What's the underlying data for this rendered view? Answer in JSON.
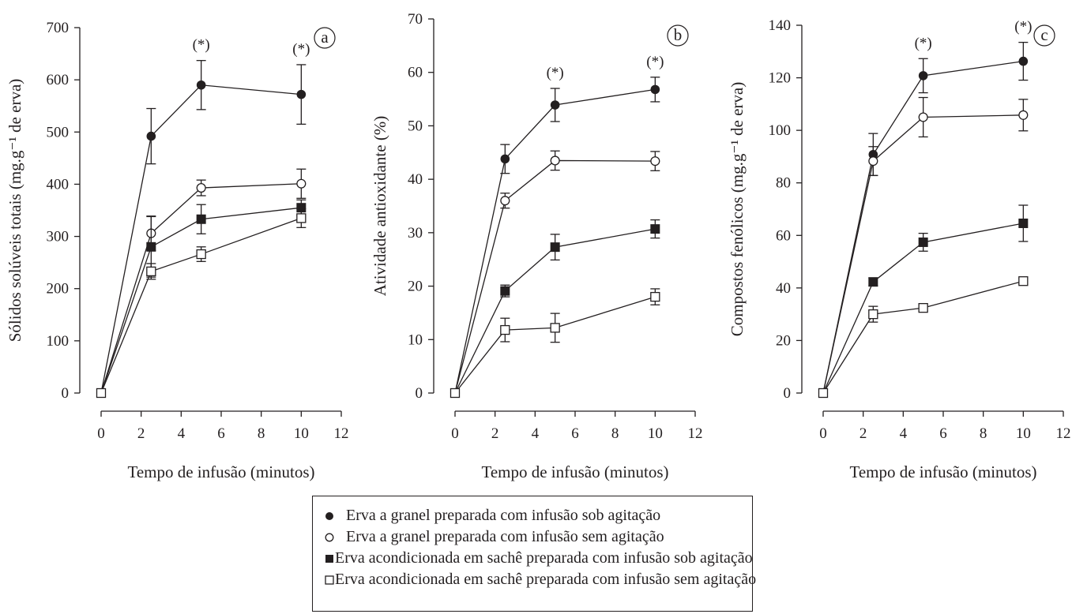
{
  "figure": {
    "legend": [
      {
        "marker": "filled-circle",
        "label": "Erva a granel preparada com infusão sob agitação"
      },
      {
        "marker": "open-circle",
        "label": "Erva a granel preparada com infusão sem agitação"
      },
      {
        "marker": "filled-square",
        "label": "Erva acondicionada em sachê preparada com infusão sob agitação"
      },
      {
        "marker": "open-square",
        "label": "Erva acondicionada em sachê preparada com infusão sem agitação"
      }
    ],
    "colors": {
      "ink": "#231f20",
      "background": "#ffffff"
    }
  },
  "chart_data": [
    {
      "type": "line",
      "panel": "a",
      "xlabel": "Tempo de infusão (minutos)",
      "ylabel": "Sólidos solúveis totais (mg.g⁻¹ de erva)",
      "xlim": [
        0,
        12
      ],
      "ylim": [
        0,
        700
      ],
      "xticks": [
        0,
        2,
        4,
        6,
        8,
        10,
        12
      ],
      "yticks": [
        0,
        100,
        200,
        300,
        400,
        500,
        600,
        700
      ],
      "x": [
        0,
        2.5,
        5,
        10
      ],
      "grid": false,
      "annotations": [
        {
          "x": 5,
          "text": "(*)"
        },
        {
          "x": 10,
          "text": "(*)"
        }
      ],
      "series": [
        {
          "marker": "filled-circle",
          "values": [
            0,
            492,
            590,
            572
          ],
          "errors": [
            0,
            53,
            47,
            57
          ]
        },
        {
          "marker": "open-circle",
          "values": [
            0,
            306,
            393,
            401
          ],
          "errors": [
            0,
            33,
            15,
            28
          ]
        },
        {
          "marker": "filled-square",
          "values": [
            0,
            280,
            333,
            355
          ],
          "errors": [
            0,
            58,
            28,
            15
          ]
        },
        {
          "marker": "open-square",
          "values": [
            0,
            233,
            266,
            335
          ],
          "errors": [
            0,
            15,
            14,
            18
          ]
        }
      ]
    },
    {
      "type": "line",
      "panel": "b",
      "xlabel": "Tempo de infusão (minutos)",
      "ylabel": "Atividade antioxidante (%)",
      "xlim": [
        0,
        12
      ],
      "ylim": [
        0,
        70
      ],
      "xticks": [
        0,
        2,
        4,
        6,
        8,
        10,
        12
      ],
      "yticks": [
        0,
        10,
        20,
        30,
        40,
        50,
        60,
        70
      ],
      "x": [
        0,
        2.5,
        5,
        10
      ],
      "grid": false,
      "annotations": [
        {
          "x": 5,
          "text": "(*)"
        },
        {
          "x": 10,
          "text": "(*)"
        }
      ],
      "series": [
        {
          "marker": "filled-circle",
          "values": [
            0,
            43.8,
            53.9,
            56.8
          ],
          "errors": [
            0,
            2.7,
            3.1,
            2.3
          ]
        },
        {
          "marker": "open-circle",
          "values": [
            0,
            36.0,
            43.5,
            43.4
          ],
          "errors": [
            0,
            1.4,
            1.8,
            1.8
          ]
        },
        {
          "marker": "filled-square",
          "values": [
            0,
            19.1,
            27.3,
            30.7
          ],
          "errors": [
            0,
            1.1,
            2.4,
            1.7
          ]
        },
        {
          "marker": "open-square",
          "values": [
            0,
            11.8,
            12.2,
            18.0
          ],
          "errors": [
            0,
            2.2,
            2.7,
            1.5
          ]
        }
      ]
    },
    {
      "type": "line",
      "panel": "c",
      "xlabel": "Tempo de infusão (minutos)",
      "ylabel": "Compostos fenólicos (mg.g⁻¹ de erva)",
      "xlim": [
        0,
        12
      ],
      "ylim": [
        0,
        140
      ],
      "xticks": [
        0,
        2,
        4,
        6,
        8,
        10,
        12
      ],
      "yticks": [
        0,
        20,
        40,
        60,
        80,
        100,
        120,
        140
      ],
      "x": [
        0,
        2.5,
        5,
        10
      ],
      "grid": false,
      "annotations": [
        {
          "x": 5,
          "text": "(*)"
        },
        {
          "x": 10,
          "text": "(*)"
        }
      ],
      "series": [
        {
          "marker": "filled-circle",
          "values": [
            0,
            90.8,
            120.8,
            126.3
          ],
          "errors": [
            0,
            8.0,
            6.5,
            7.2
          ]
        },
        {
          "marker": "open-circle",
          "values": [
            0,
            88.3,
            105.0,
            105.8
          ],
          "errors": [
            0,
            5.5,
            7.5,
            6.0
          ]
        },
        {
          "marker": "filled-square",
          "values": [
            0,
            42.3,
            57.4,
            64.6
          ],
          "errors": [
            0,
            1.5,
            3.4,
            6.9
          ]
        },
        {
          "marker": "open-square",
          "values": [
            0,
            30.0,
            32.4,
            42.6
          ],
          "errors": [
            0,
            3.0,
            1.0,
            1.0
          ]
        }
      ]
    }
  ]
}
